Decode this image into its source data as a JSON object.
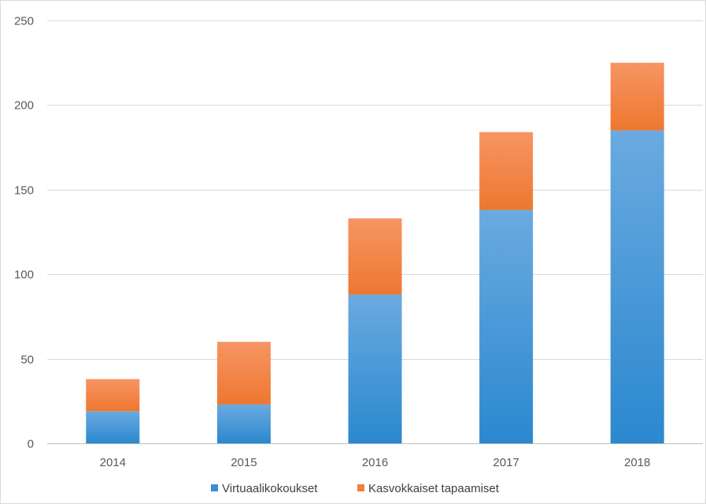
{
  "chart_data": {
    "type": "bar",
    "stacked": true,
    "categories": [
      "2014",
      "2015",
      "2016",
      "2017",
      "2018"
    ],
    "series": [
      {
        "name": "Virtuaalikokoukset",
        "values": [
          19,
          23,
          88,
          138,
          185
        ],
        "color": "#3a8fd4"
      },
      {
        "name": "Kasvokkaiset tapaamiset",
        "values": [
          19,
          37,
          45,
          46,
          40
        ],
        "color": "#f07f3c"
      }
    ],
    "ylim": [
      0,
      250
    ],
    "yticks": [
      0,
      50,
      100,
      150,
      200,
      250
    ],
    "ytick_labels": [
      "0",
      "50",
      "100",
      "150",
      "200",
      "250"
    ],
    "title": "",
    "xlabel": "",
    "ylabel": "",
    "grid": true,
    "legend_position": "bottom"
  }
}
